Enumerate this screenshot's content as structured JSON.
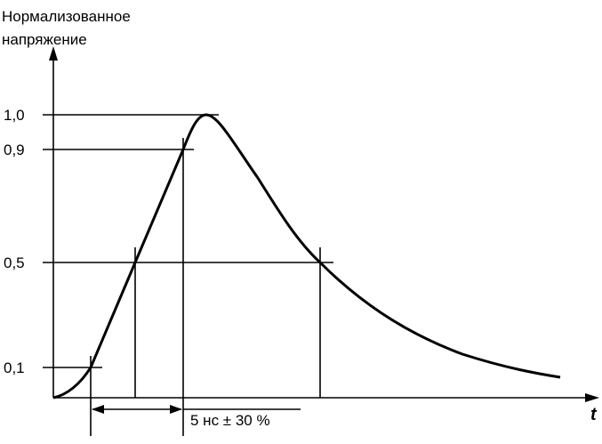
{
  "y_axis_label": [
    "Нормализованное",
    "напряжение"
  ],
  "x_axis_label": "t",
  "levels": [
    "1,0",
    "0,9",
    "0,5",
    "0,1"
  ],
  "annotation": "5 нс ± 30 %"
}
